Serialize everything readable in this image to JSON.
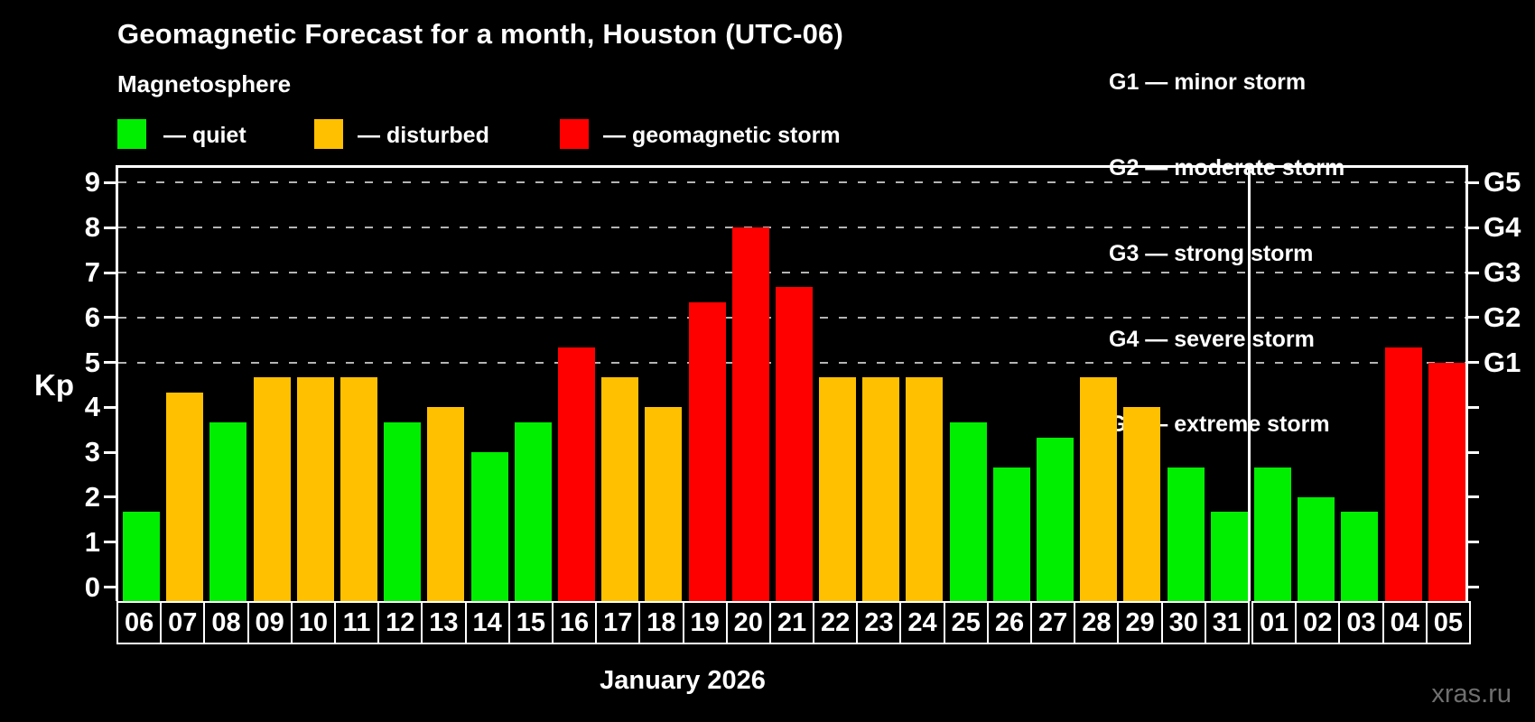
{
  "page": {
    "title": "Geomagnetic Forecast for a month, Houston (UTC-06)",
    "subtitle": "Magnetosphere",
    "watermark": "xras.ru"
  },
  "legend": {
    "items": [
      {
        "key": "quiet",
        "label": "— quiet",
        "color": "#00EE00"
      },
      {
        "key": "disturbed",
        "label": "— disturbed",
        "color": "#FFC000"
      },
      {
        "key": "storm",
        "label": "— geomagnetic storm",
        "color": "#FF0000"
      }
    ]
  },
  "g_legend": [
    "G1 — minor storm",
    "G2 — moderate storm",
    "G3 — strong storm",
    "G4 — severe storm",
    "G5 — extreme storm"
  ],
  "chart_data": {
    "type": "bar",
    "title": "Geomagnetic Forecast for a month, Houston (UTC-06)",
    "ylabel": "Kp",
    "xlabel": "January 2026",
    "ylim": [
      0,
      9.4
    ],
    "yticks": [
      0,
      1,
      2,
      3,
      4,
      5,
      6,
      7,
      8,
      9
    ],
    "grid": "dashed horizontal lines at Kp 5..9 only",
    "legend_position": "top",
    "right_axis": [
      {
        "kp": 5,
        "label": "G1"
      },
      {
        "kp": 6,
        "label": "G2"
      },
      {
        "kp": 7,
        "label": "G3"
      },
      {
        "kp": 8,
        "label": "G4"
      },
      {
        "kp": 9,
        "label": "G5"
      }
    ],
    "categories": [
      "06",
      "07",
      "08",
      "09",
      "10",
      "11",
      "12",
      "13",
      "14",
      "15",
      "16",
      "17",
      "18",
      "19",
      "20",
      "21",
      "22",
      "23",
      "24",
      "25",
      "26",
      "27",
      "28",
      "29",
      "30",
      "31",
      "01",
      "02",
      "03",
      "04",
      "05"
    ],
    "values": [
      1.67,
      4.33,
      3.67,
      4.67,
      4.67,
      4.67,
      3.67,
      4.0,
      3.0,
      3.67,
      5.33,
      4.67,
      4.0,
      6.33,
      8.0,
      6.67,
      4.67,
      4.67,
      4.67,
      3.67,
      2.67,
      3.33,
      4.67,
      4.0,
      2.67,
      1.67,
      2.67,
      2.0,
      1.67,
      5.33,
      5.0
    ],
    "statuses": [
      "quiet",
      "disturbed",
      "quiet",
      "disturbed",
      "disturbed",
      "disturbed",
      "quiet",
      "disturbed",
      "quiet",
      "quiet",
      "storm",
      "disturbed",
      "disturbed",
      "storm",
      "storm",
      "storm",
      "disturbed",
      "disturbed",
      "disturbed",
      "quiet",
      "quiet",
      "quiet",
      "disturbed",
      "disturbed",
      "quiet",
      "quiet",
      "quiet",
      "quiet",
      "quiet",
      "storm",
      "storm"
    ],
    "month_divider_after_index": 25,
    "month_label": "January 2026"
  },
  "colors": {
    "background": "#000000",
    "frame": "#FFFFFF",
    "grid": "#B4B4B4",
    "watermark": "#6F6F6F"
  }
}
